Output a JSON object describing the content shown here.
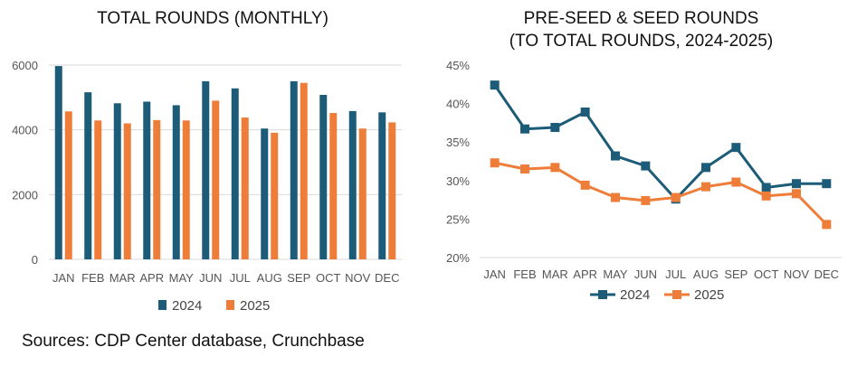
{
  "source": "Sources: CDP Center database, Crunchbase",
  "colors": {
    "series_2024": "#1d5c78",
    "series_2025": "#ee7d3a",
    "gridline": "#d9d9d9"
  },
  "chart_data": [
    {
      "type": "bar",
      "title": "TOTAL ROUNDS (MONTHLY)",
      "categories": [
        "JAN",
        "FEB",
        "MAR",
        "APR",
        "MAY",
        "JUN",
        "JUL",
        "AUG",
        "SEP",
        "OCT",
        "NOV",
        "DEC"
      ],
      "series": [
        {
          "name": "2024",
          "values": [
            5970,
            5160,
            4820,
            4870,
            4760,
            5500,
            5280,
            4040,
            5500,
            5080,
            4580,
            4540
          ]
        },
        {
          "name": "2025",
          "values": [
            4570,
            4290,
            4200,
            4300,
            4290,
            4900,
            4380,
            3910,
            5450,
            4520,
            4040,
            4230
          ]
        }
      ],
      "ylim": [
        0,
        6000
      ],
      "yticks": [
        0,
        2000,
        4000,
        6000
      ],
      "ytick_labels": [
        "0",
        "2000",
        "4000",
        "6000"
      ],
      "xlabel": "",
      "ylabel": "",
      "grid": true,
      "legend": "bottom"
    },
    {
      "type": "line",
      "title": [
        "PRE-SEED & SEED ROUNDS",
        "(TO TOTAL ROUNDS, 2024-2025)"
      ],
      "categories": [
        "JAN",
        "FEB",
        "MAR",
        "APR",
        "MAY",
        "JUN",
        "JUL",
        "AUG",
        "SEP",
        "OCT",
        "NOV",
        "DEC"
      ],
      "series": [
        {
          "name": "2024",
          "values": [
            42.4,
            36.7,
            36.9,
            38.9,
            33.2,
            31.9,
            27.6,
            31.7,
            34.3,
            29.1,
            29.6,
            29.6
          ]
        },
        {
          "name": "2025",
          "values": [
            32.3,
            31.5,
            31.7,
            29.4,
            27.8,
            27.4,
            27.8,
            29.2,
            29.8,
            28.0,
            28.3,
            24.3
          ]
        }
      ],
      "ylim": [
        20,
        45
      ],
      "yticks": [
        20,
        25,
        30,
        35,
        40,
        45
      ],
      "ytick_labels": [
        "20%",
        "25%",
        "30%",
        "35%",
        "40%",
        "45%"
      ],
      "xlabel": "",
      "ylabel": "",
      "grid": false,
      "legend": "bottom"
    }
  ]
}
